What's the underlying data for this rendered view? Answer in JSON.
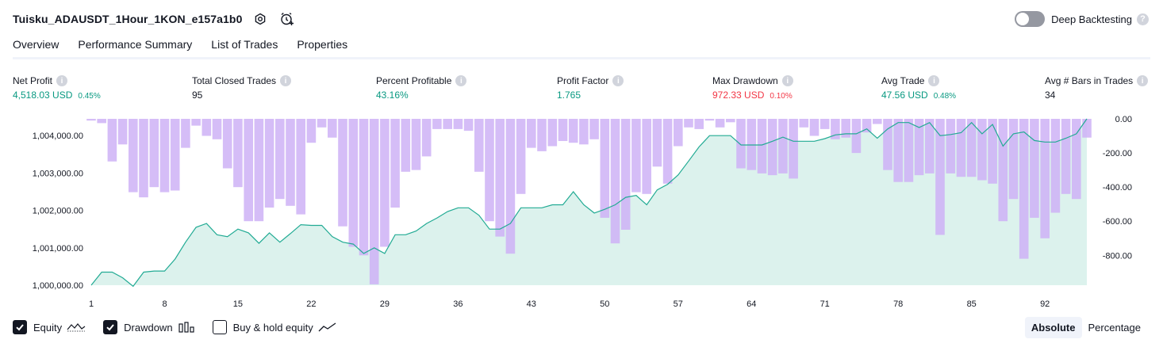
{
  "header": {
    "title": "Tuisku_ADAUSDT_1Hour_1KON_e157a1b0",
    "backtest_label": "Deep Backtesting",
    "backtest_enabled": false
  },
  "tabs": [
    {
      "label": "Overview",
      "active": true
    },
    {
      "label": "Performance Summary",
      "active": false
    },
    {
      "label": "List of Trades",
      "active": false
    },
    {
      "label": "Properties",
      "active": false
    }
  ],
  "stats": {
    "net_profit": {
      "label": "Net Profit",
      "value": "4,518.03 USD",
      "pct": "0.45%"
    },
    "total_closed_trades": {
      "label": "Total Closed Trades",
      "value": "95"
    },
    "percent_profitable": {
      "label": "Percent Profitable",
      "value": "43.16%"
    },
    "profit_factor": {
      "label": "Profit Factor",
      "value": "1.765"
    },
    "max_drawdown": {
      "label": "Max Drawdown",
      "value": "972.33 USD",
      "pct": "0.10%"
    },
    "avg_trade": {
      "label": "Avg Trade",
      "value": "47.56 USD",
      "pct": "0.48%"
    },
    "avg_bars": {
      "label": "Avg # Bars in Trades",
      "value": "34"
    }
  },
  "legend": {
    "equity": {
      "label": "Equity",
      "checked": true
    },
    "drawdown": {
      "label": "Drawdown",
      "checked": true
    },
    "buy_hold": {
      "label": "Buy & hold equity",
      "checked": false
    }
  },
  "mode": {
    "absolute": "Absolute",
    "percentage": "Percentage",
    "selected": "Absolute"
  },
  "colors": {
    "equity_line": "#22ab94",
    "equity_fill": "#d6f0ea",
    "drawdown_bar": "#ceb2f6",
    "positive": "#089981",
    "negative": "#f23645"
  },
  "chart_data": {
    "type": "area",
    "x_ticks": [
      "1",
      "8",
      "15",
      "22",
      "29",
      "36",
      "43",
      "50",
      "57",
      "64",
      "71",
      "78",
      "85",
      "92"
    ],
    "left_axis": {
      "ticks": [
        "1,000,000.00",
        "1,001,000.00",
        "1,002,000.00",
        "1,003,000.00",
        "1,004,000.00"
      ],
      "range": [
        1000000,
        1004450
      ]
    },
    "right_axis": {
      "ticks": [
        "0.00",
        "-200.00",
        "-400.00",
        "-600.00",
        "-800.00"
      ],
      "range": [
        -975,
        0
      ]
    },
    "series": [
      {
        "name": "Equity",
        "x": [
          1,
          2,
          3,
          4,
          5,
          6,
          7,
          8,
          9,
          10,
          11,
          12,
          13,
          14,
          15,
          16,
          17,
          18,
          19,
          20,
          21,
          22,
          23,
          24,
          25,
          26,
          27,
          28,
          29,
          30,
          31,
          32,
          33,
          34,
          35,
          36,
          37,
          38,
          39,
          40,
          41,
          42,
          43,
          44,
          45,
          46,
          47,
          48,
          49,
          50,
          51,
          52,
          53,
          54,
          55,
          56,
          57,
          58,
          59,
          60,
          61,
          62,
          63,
          64,
          65,
          66,
          67,
          68,
          69,
          70,
          71,
          72,
          73,
          74,
          75,
          76,
          77,
          78,
          79,
          80,
          81,
          82,
          83,
          84,
          85,
          86,
          87,
          88,
          89,
          90,
          91,
          92,
          93,
          94,
          95,
          96
        ],
        "values": [
          1000000,
          1000350,
          1000350,
          1000200,
          999970,
          1000350,
          1000380,
          1000380,
          1000700,
          1001150,
          1001550,
          1001650,
          1001350,
          1001300,
          1001500,
          1001400,
          1001120,
          1001400,
          1001150,
          1001380,
          1001620,
          1001600,
          1001600,
          1001300,
          1001150,
          1001100,
          1000850,
          1001000,
          1000850,
          1001350,
          1001350,
          1001450,
          1001650,
          1001800,
          1001970,
          1002070,
          1002070,
          1001870,
          1001500,
          1001500,
          1001650,
          1002070,
          1002070,
          1002070,
          1002150,
          1002150,
          1002500,
          1002150,
          1001930,
          1002030,
          1002150,
          1002350,
          1002400,
          1002150,
          1002550,
          1002700,
          1002950,
          1003320,
          1003700,
          1004000,
          1004000,
          1004000,
          1003750,
          1003750,
          1003750,
          1003850,
          1003960,
          1003850,
          1003850,
          1003850,
          1003920,
          1004020,
          1004050,
          1004050,
          1004180,
          1003930,
          1004180,
          1004350,
          1004350,
          1004220,
          1004350,
          1004000,
          1004030,
          1004080,
          1004350,
          1004050,
          1004300,
          1003720,
          1004050,
          1004100,
          1003870,
          1003830,
          1003830,
          1003930,
          1004050,
          1004450
        ]
      },
      {
        "name": "Drawdown",
        "x": [
          1,
          2,
          3,
          4,
          5,
          6,
          7,
          8,
          9,
          10,
          11,
          12,
          13,
          14,
          15,
          16,
          17,
          18,
          19,
          20,
          21,
          22,
          23,
          24,
          25,
          26,
          27,
          28,
          29,
          30,
          31,
          32,
          33,
          34,
          35,
          36,
          37,
          38,
          39,
          40,
          41,
          42,
          43,
          44,
          45,
          46,
          47,
          48,
          49,
          50,
          51,
          52,
          53,
          54,
          55,
          56,
          57,
          58,
          59,
          60,
          61,
          62,
          63,
          64,
          65,
          66,
          67,
          68,
          69,
          70,
          71,
          72,
          73,
          74,
          75,
          76,
          77,
          78,
          79,
          80,
          81,
          82,
          83,
          84,
          85,
          86,
          87,
          88,
          89,
          90,
          91,
          92,
          93,
          94,
          95,
          96
        ],
        "values": [
          -10,
          -25,
          -250,
          -150,
          -430,
          -460,
          -400,
          -430,
          -420,
          -170,
          -40,
          -100,
          -120,
          -290,
          -400,
          -600,
          -600,
          -520,
          -470,
          -510,
          -560,
          -140,
          -50,
          -110,
          -630,
          -750,
          -800,
          -970,
          -750,
          -520,
          -310,
          -300,
          -220,
          -60,
          -60,
          -60,
          -70,
          -310,
          -600,
          -690,
          -790,
          -440,
          -170,
          -190,
          -160,
          -130,
          -140,
          -150,
          -120,
          -580,
          -730,
          -650,
          -430,
          -440,
          -280,
          -380,
          -160,
          -50,
          -60,
          -10,
          -50,
          -20,
          -290,
          -300,
          -320,
          -330,
          -320,
          -350,
          -50,
          -100,
          -60,
          -120,
          -110,
          -200,
          -80,
          -30,
          -300,
          -370,
          -370,
          -330,
          -320,
          -680,
          -320,
          -340,
          -340,
          -360,
          -380,
          -600,
          -470,
          -820,
          -580,
          -700,
          -550,
          -440,
          -470,
          -110
        ]
      }
    ]
  }
}
